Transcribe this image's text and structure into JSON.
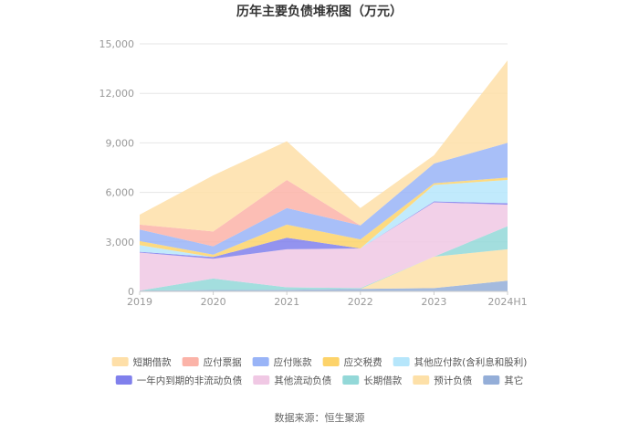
{
  "chart_data": {
    "type": "area",
    "stacked": true,
    "title": "历年主要负债堆积图（万元）",
    "categories": [
      "2019",
      "2020",
      "2021",
      "2022",
      "2023",
      "2024H1"
    ],
    "yticks": [
      "0",
      "3,000",
      "6,000",
      "9,000",
      "12,000",
      "15,000"
    ],
    "ylim": [
      0,
      15000
    ],
    "grid": true,
    "legend_position": "bottom",
    "series": [
      {
        "name": "其它",
        "color": "#94aed8",
        "values": [
          50,
          80,
          100,
          150,
          200,
          650
        ]
      },
      {
        "name": "预计负债",
        "color": "#fde0a8",
        "values": [
          0,
          0,
          0,
          0,
          1900,
          1900
        ]
      },
      {
        "name": "长期借款",
        "color": "#93d8d8",
        "values": [
          0,
          700,
          150,
          50,
          0,
          1400
        ]
      },
      {
        "name": "其他流动负债",
        "color": "#f0c8e4",
        "values": [
          2300,
          1200,
          2300,
          2400,
          3300,
          1300
        ]
      },
      {
        "name": "一年内到期的非流动负债",
        "color": "#8080ec",
        "values": [
          50,
          100,
          700,
          0,
          50,
          100
        ]
      },
      {
        "name": "其他应付款(含利息和股利)",
        "color": "#b6e6fb",
        "values": [
          400,
          0,
          0,
          0,
          1000,
          1400
        ]
      },
      {
        "name": "应交税费",
        "color": "#fdd36a",
        "values": [
          250,
          150,
          800,
          550,
          100,
          150
        ]
      },
      {
        "name": "应付账款",
        "color": "#99b4f7",
        "values": [
          700,
          500,
          1000,
          850,
          1200,
          2100
        ]
      },
      {
        "name": "应付票据",
        "color": "#fbb3a8",
        "values": [
          300,
          900,
          1700,
          0,
          0,
          0
        ]
      },
      {
        "name": "短期借款",
        "color": "#fedfa8",
        "values": [
          600,
          3400,
          2350,
          1050,
          500,
          5000
        ]
      }
    ],
    "legend_order": [
      "短期借款",
      "应付票据",
      "应付账款",
      "应交税费",
      "其他应付款(含利息和股利)",
      "一年内到期的非流动负债",
      "其他流动负债",
      "长期借款",
      "预计负债",
      "其它"
    ]
  },
  "source": "数据来源：恒生聚源"
}
